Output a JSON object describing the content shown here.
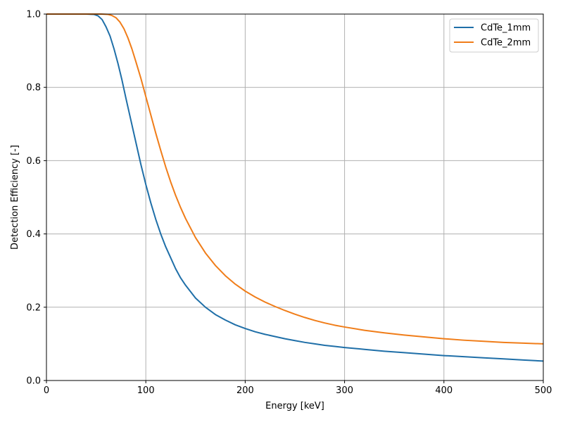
{
  "chart_data": {
    "type": "line",
    "xlabel": "Energy [keV]",
    "ylabel": "Detection Efficiency [-]",
    "xlim": [
      0,
      500
    ],
    "ylim": [
      0.0,
      1.0
    ],
    "xticks": [
      0,
      100,
      200,
      300,
      400,
      500
    ],
    "yticks": [
      0.0,
      0.2,
      0.4,
      0.6,
      0.8,
      1.0
    ],
    "xtick_labels": [
      "0",
      "100",
      "200",
      "300",
      "400",
      "500"
    ],
    "ytick_labels": [
      "0.0",
      "0.2",
      "0.4",
      "0.6",
      "0.8",
      "1.0"
    ],
    "grid": true,
    "legend_position": "top-right",
    "series": [
      {
        "name": "CdTe_1mm",
        "color": "#1f6fa8",
        "x": [
          0,
          40,
          48,
          52,
          56,
          60,
          64,
          68,
          72,
          76,
          80,
          85,
          90,
          95,
          100,
          105,
          110,
          115,
          120,
          125,
          130,
          135,
          140,
          150,
          160,
          170,
          180,
          190,
          200,
          210,
          220,
          230,
          240,
          250,
          260,
          270,
          280,
          290,
          300,
          320,
          340,
          360,
          380,
          400,
          420,
          440,
          460,
          480,
          500
        ],
        "y": [
          1.0,
          1.0,
          0.999,
          0.995,
          0.985,
          0.965,
          0.94,
          0.905,
          0.865,
          0.82,
          0.77,
          0.71,
          0.65,
          0.59,
          0.535,
          0.485,
          0.44,
          0.4,
          0.365,
          0.335,
          0.305,
          0.28,
          0.26,
          0.225,
          0.2,
          0.18,
          0.165,
          0.152,
          0.142,
          0.133,
          0.126,
          0.12,
          0.114,
          0.109,
          0.104,
          0.1,
          0.096,
          0.093,
          0.09,
          0.085,
          0.08,
          0.076,
          0.072,
          0.068,
          0.065,
          0.062,
          0.059,
          0.056,
          0.053
        ]
      },
      {
        "name": "CdTe_2mm",
        "color": "#f07d19",
        "x": [
          0,
          55,
          62,
          66,
          70,
          74,
          78,
          82,
          86,
          90,
          95,
          100,
          105,
          110,
          115,
          120,
          125,
          130,
          135,
          140,
          150,
          160,
          170,
          180,
          190,
          200,
          210,
          220,
          230,
          240,
          250,
          260,
          270,
          280,
          290,
          300,
          320,
          340,
          360,
          380,
          400,
          420,
          440,
          460,
          480,
          500
        ],
        "y": [
          1.0,
          1.0,
          0.999,
          0.996,
          0.99,
          0.978,
          0.96,
          0.935,
          0.905,
          0.87,
          0.825,
          0.775,
          0.725,
          0.675,
          0.628,
          0.583,
          0.542,
          0.505,
          0.472,
          0.442,
          0.39,
          0.348,
          0.314,
          0.286,
          0.263,
          0.244,
          0.228,
          0.214,
          0.202,
          0.191,
          0.181,
          0.172,
          0.164,
          0.157,
          0.151,
          0.146,
          0.137,
          0.13,
          0.124,
          0.119,
          0.114,
          0.11,
          0.107,
          0.104,
          0.102,
          0.1
        ]
      }
    ]
  }
}
